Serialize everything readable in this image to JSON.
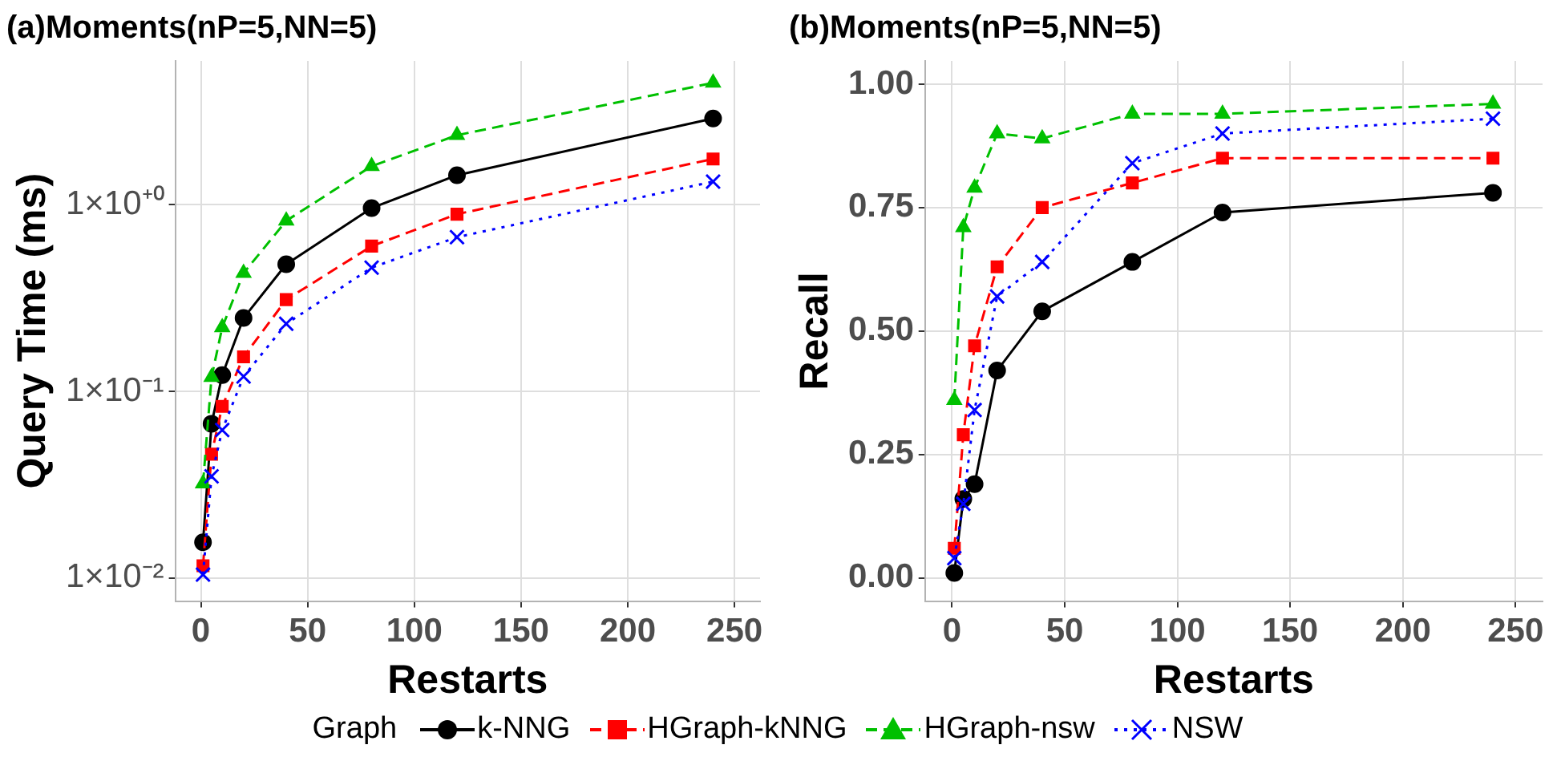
{
  "chart_data": [
    {
      "type": "line",
      "title": "(a)Moments(nP=5,NN=5)",
      "xlabel": "Restarts",
      "ylabel": "Query Time (ms)",
      "log": "y",
      "x": [
        1,
        5,
        10,
        20,
        40,
        80,
        120,
        240
      ],
      "xlim": [
        -12,
        262
      ],
      "xticks": [
        0,
        50,
        100,
        150,
        200,
        250
      ],
      "ylim": [
        0.0075,
        5.9
      ],
      "yticks": [
        {
          "value": 0.01,
          "label": "1×10⁻²"
        },
        {
          "value": 0.1,
          "label": "1×10⁻¹"
        },
        {
          "value": 1,
          "label": "1×10⁺⁰"
        }
      ],
      "grid": true,
      "legend": "bottom",
      "legend_title": "Graph",
      "series": [
        {
          "name": "k-NNG",
          "color": "#000000",
          "marker": "circle",
          "line_style": "solid",
          "values": [
            0.0155,
            0.067,
            0.122,
            0.247,
            0.48,
            0.96,
            1.44,
            2.9
          ]
        },
        {
          "name": "HGraph-kNNG",
          "color": "#ff0000",
          "marker": "square",
          "line_style": "dashed",
          "values": [
            0.0116,
            0.046,
            0.083,
            0.153,
            0.31,
            0.6,
            0.89,
            1.76
          ]
        },
        {
          "name": "HGraph-nsw",
          "color": "#00c000",
          "marker": "triangle",
          "line_style": "dashed",
          "values": [
            0.032,
            0.119,
            0.22,
            0.43,
            0.82,
            1.61,
            2.36,
            4.5
          ]
        },
        {
          "name": "NSW",
          "color": "#0000ff",
          "marker": "cross",
          "line_style": "dotted",
          "values": [
            0.0104,
            0.035,
            0.062,
            0.12,
            0.23,
            0.46,
            0.67,
            1.33
          ]
        }
      ]
    },
    {
      "type": "line",
      "title": "(b)Moments(nP=5,NN=5)",
      "xlabel": "Restarts",
      "ylabel": "Recall",
      "x": [
        1,
        5,
        10,
        20,
        40,
        80,
        120,
        240
      ],
      "xlim": [
        -12,
        262
      ],
      "xticks": [
        0,
        50,
        100,
        150,
        200,
        250
      ],
      "ylim": [
        -0.047,
        1.047
      ],
      "yticks": [
        {
          "value": 0,
          "label": "0.00"
        },
        {
          "value": 0.25,
          "label": "0.25"
        },
        {
          "value": 0.5,
          "label": "0.50"
        },
        {
          "value": 0.75,
          "label": "0.75"
        },
        {
          "value": 1,
          "label": "1.00"
        }
      ],
      "grid": true,
      "series": [
        {
          "color": "#000000",
          "marker": "circle",
          "line_style": "solid",
          "values": [
            0.01,
            0.16,
            0.19,
            0.42,
            0.54,
            0.64,
            0.74,
            0.78
          ]
        },
        {
          "color": "#ff0000",
          "marker": "square",
          "line_style": "dashed",
          "values": [
            0.06,
            0.29,
            0.47,
            0.63,
            0.75,
            0.8,
            0.85,
            0.85
          ]
        },
        {
          "color": "#00c000",
          "marker": "triangle",
          "line_style": "dashed",
          "values": [
            0.36,
            0.71,
            0.79,
            0.9,
            0.89,
            0.94,
            0.94,
            0.96
          ]
        },
        {
          "color": "#0000ff",
          "marker": "cross",
          "line_style": "dotted",
          "values": [
            0.04,
            0.15,
            0.34,
            0.57,
            0.64,
            0.84,
            0.9,
            0.93
          ]
        }
      ]
    }
  ]
}
